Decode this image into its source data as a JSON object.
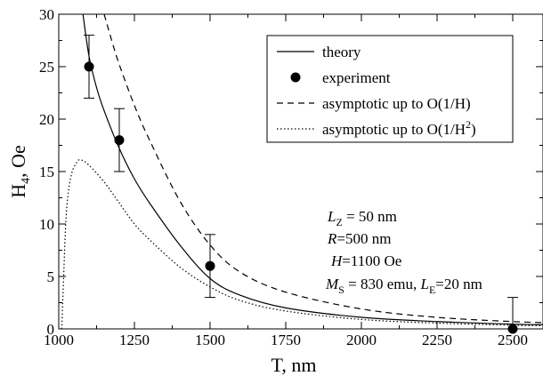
{
  "chart_data": {
    "type": "line",
    "xlabel": "T, nm",
    "ylabel_main": "H",
    "ylabel_sub": "4",
    "ylabel_tail": ", Oe",
    "xlim": [
      1000,
      2600
    ],
    "ylim": [
      0,
      30
    ],
    "xticks": [
      1000,
      1250,
      1500,
      1750,
      2000,
      2250,
      2500
    ],
    "yticks": [
      0,
      5,
      10,
      15,
      20,
      25,
      30
    ],
    "grid": false,
    "legend_position": "top-right",
    "legend": [
      {
        "label_main": "theory",
        "label_sup": "",
        "label_tail": "",
        "style": "solid"
      },
      {
        "label_main": "experiment",
        "label_sup": "",
        "label_tail": "",
        "style": "marker"
      },
      {
        "label_main": "asymptotic up to O(1/H)",
        "label_sup": "",
        "label_tail": "",
        "style": "dashed"
      },
      {
        "label_main": "asymptotic up to O(1/H",
        "label_sup": "2",
        "label_tail": ")",
        "style": "dotted"
      }
    ],
    "series": [
      {
        "name": "theory",
        "style": "solid",
        "x": [
          1080,
          1100,
          1125,
          1150,
          1200,
          1250,
          1300,
          1400,
          1500,
          1600,
          1750,
          2000,
          2250,
          2500,
          2600
        ],
        "y": [
          30,
          26.0,
          23.0,
          20.8,
          17.2,
          14.3,
          12.0,
          8.0,
          4.8,
          3.2,
          2.0,
          1.1,
          0.7,
          0.45,
          0.4
        ]
      },
      {
        "name": "asymptotic up to O(1/H)",
        "style": "dashed",
        "x": [
          1150,
          1175,
          1200,
          1250,
          1300,
          1400,
          1500,
          1600,
          1750,
          2000,
          2250,
          2500,
          2600
        ],
        "y": [
          30,
          27.5,
          25.2,
          21.3,
          18.0,
          12.2,
          8.0,
          5.4,
          3.5,
          1.9,
          1.1,
          0.7,
          0.6
        ]
      },
      {
        "name": "asymptotic up to O(1/H2)",
        "style": "dotted",
        "x": [
          1010,
          1015,
          1025,
          1040,
          1060,
          1075,
          1100,
          1150,
          1200,
          1250,
          1300,
          1400,
          1500,
          1600,
          1750,
          2000,
          2250,
          2500,
          2600
        ],
        "y": [
          0,
          4.0,
          11.0,
          14.5,
          15.9,
          16.1,
          15.6,
          14.0,
          12.0,
          10.0,
          8.5,
          5.9,
          4.0,
          2.7,
          1.7,
          0.9,
          0.55,
          0.35,
          0.3
        ]
      }
    ],
    "experiment": [
      {
        "x": 1100,
        "y": 25,
        "err_low": 22,
        "err_high": 28
      },
      {
        "x": 1200,
        "y": 18,
        "err_low": 15,
        "err_high": 21
      },
      {
        "x": 1500,
        "y": 6,
        "err_low": 3,
        "err_high": 9
      },
      {
        "x": 2500,
        "y": 0,
        "err_low": 0,
        "err_high": 3
      }
    ],
    "annotations": [
      {
        "main": "L",
        "sub": "Z",
        "rest": " = 50 nm",
        "main_italic": true,
        "sub2": "",
        "rest2": ""
      },
      {
        "main": "R",
        "sub": "",
        "rest": "=500 nm",
        "main_italic": true,
        "sub2": "",
        "rest2": ""
      },
      {
        "main": "H",
        "sub": "",
        "rest": "=1100 Oe",
        "main_italic": true,
        "sub2": "",
        "rest2": ""
      },
      {
        "main": "M",
        "sub": "S",
        "rest": " = 830 emu, ",
        "main_italic": true,
        "main2": "L",
        "sub2": "E",
        "rest2": "=20 nm"
      }
    ]
  }
}
